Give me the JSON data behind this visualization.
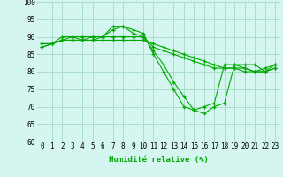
{
  "series": [
    [
      88,
      88,
      90,
      90,
      90,
      90,
      90,
      93,
      93,
      91,
      90,
      86,
      82,
      77,
      73,
      69,
      68,
      70,
      71,
      82,
      82,
      82,
      80,
      82
    ],
    [
      87,
      88,
      89,
      90,
      89,
      89,
      90,
      92,
      93,
      92,
      91,
      85,
      80,
      75,
      70,
      69,
      70,
      71,
      82,
      82,
      81,
      80,
      81,
      82
    ],
    [
      87,
      88,
      89,
      89,
      89,
      90,
      90,
      90,
      90,
      90,
      90,
      87,
      86,
      85,
      84,
      83,
      82,
      81,
      81,
      81,
      81,
      80,
      80,
      81
    ],
    [
      88,
      88,
      89,
      89,
      89,
      89,
      89,
      89,
      89,
      89,
      89,
      88,
      87,
      86,
      85,
      84,
      83,
      82,
      81,
      81,
      80,
      80,
      80,
      81
    ]
  ],
  "x": [
    0,
    1,
    2,
    3,
    4,
    5,
    6,
    7,
    8,
    9,
    10,
    11,
    12,
    13,
    14,
    15,
    16,
    17,
    18,
    19,
    20,
    21,
    22,
    23
  ],
  "xlabel": "Humidité relative (%)",
  "ylim": [
    60,
    100
  ],
  "yticks": [
    60,
    65,
    70,
    75,
    80,
    85,
    90,
    95,
    100
  ],
  "xticks": [
    0,
    1,
    2,
    3,
    4,
    5,
    6,
    7,
    8,
    9,
    10,
    11,
    12,
    13,
    14,
    15,
    16,
    17,
    18,
    19,
    20,
    21,
    22,
    23
  ],
  "line_color": "#00aa00",
  "marker": "+",
  "bg_color": "#d4f5f0",
  "grid_color": "#aaddcc",
  "tick_fontsize": 5.5,
  "xlabel_fontsize": 6.5
}
